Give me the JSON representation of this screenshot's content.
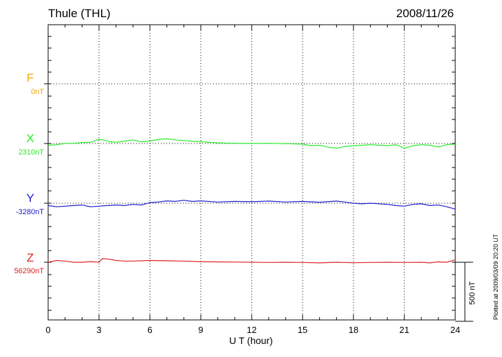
{
  "header": {
    "station": "Thule (THL)",
    "date": "2008/11/26"
  },
  "footer": {
    "plotted_note": "Plotted at 2009/03/09 20:20 UT"
  },
  "colors": {
    "F": "#f5a800",
    "X": "#22ee22",
    "Y": "#1a1acc",
    "Z": "#dd2222"
  },
  "chart_data": {
    "type": "line",
    "xlabel": "U T (hour)",
    "xlim": [
      0,
      24
    ],
    "x_ticks": [
      "0",
      "3",
      "6",
      "9",
      "12",
      "15",
      "18",
      "21",
      "24"
    ],
    "scale_bar": {
      "value": 500,
      "label": "500 nT"
    },
    "series": [
      {
        "name": "F",
        "baseline_label": "0nT",
        "values": []
      },
      {
        "name": "X",
        "baseline_label": "2310nT",
        "x": [
          0,
          0.5,
          1,
          1.5,
          2,
          2.5,
          3,
          3.3,
          3.6,
          4,
          4.5,
          5,
          5.5,
          6,
          6.5,
          7,
          7.5,
          8,
          8.5,
          9,
          10,
          11,
          12,
          13,
          14,
          15,
          15.5,
          16,
          16.5,
          17,
          17.5,
          18,
          18.5,
          19,
          20,
          20.5,
          21,
          21.5,
          22,
          22.5,
          23,
          23.5,
          24
        ],
        "values": [
          2295,
          2300,
          2310,
          2312,
          2318,
          2320,
          2345,
          2340,
          2325,
          2320,
          2330,
          2340,
          2325,
          2330,
          2345,
          2350,
          2340,
          2335,
          2330,
          2325,
          2315,
          2312,
          2310,
          2312,
          2308,
          2305,
          2290,
          2295,
          2280,
          2270,
          2285,
          2290,
          2295,
          2300,
          2290,
          2300,
          2270,
          2290,
          2300,
          2295,
          2280,
          2300,
          2305
        ]
      },
      {
        "name": "Y",
        "baseline_label": "-3280nT",
        "x": [
          0,
          0.5,
          1,
          1.5,
          2,
          2.5,
          3,
          3.5,
          4,
          4.5,
          5,
          5.5,
          6,
          6.5,
          7,
          7.5,
          8,
          8.5,
          9,
          10,
          11,
          12,
          13,
          14,
          15,
          16,
          17,
          17.5,
          18,
          18.5,
          19,
          20,
          20.5,
          21,
          21.5,
          22,
          22.5,
          23,
          23.5,
          24
        ],
        "values": [
          -3300,
          -3310,
          -3305,
          -3300,
          -3295,
          -3310,
          -3305,
          -3300,
          -3295,
          -3300,
          -3290,
          -3295,
          -3275,
          -3270,
          -3260,
          -3265,
          -3255,
          -3265,
          -3260,
          -3270,
          -3265,
          -3268,
          -3262,
          -3270,
          -3265,
          -3272,
          -3262,
          -3270,
          -3280,
          -3285,
          -3280,
          -3290,
          -3300,
          -3305,
          -3290,
          -3285,
          -3300,
          -3295,
          -3310,
          -3330
        ]
      },
      {
        "name": "Z",
        "baseline_label": "56290nT",
        "x": [
          0,
          0.5,
          1,
          1.5,
          2,
          2.5,
          3,
          3.2,
          3.5,
          4,
          4.5,
          5,
          6,
          7,
          8,
          9,
          10,
          11,
          12,
          13,
          14,
          15,
          16,
          17,
          18,
          19,
          20,
          21,
          22,
          22.5,
          23,
          23.5,
          24
        ],
        "values": [
          56290,
          56305,
          56300,
          56290,
          56290,
          56295,
          56290,
          56320,
          56318,
          56305,
          56300,
          56300,
          56305,
          56302,
          56300,
          56295,
          56293,
          56292,
          56290,
          56288,
          56290,
          56288,
          56285,
          56290,
          56286,
          56288,
          56290,
          56288,
          56290,
          56285,
          56293,
          56290,
          56310
        ]
      }
    ]
  }
}
